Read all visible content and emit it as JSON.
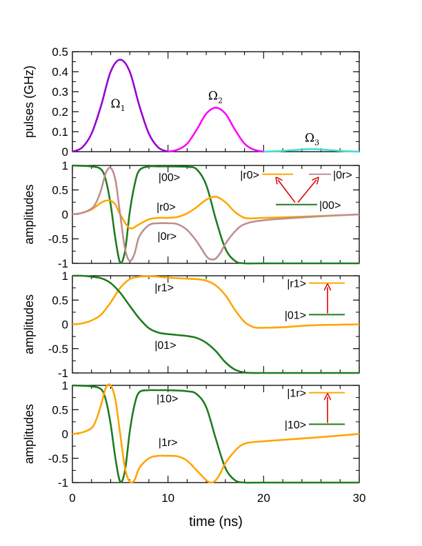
{
  "chart_data": {
    "type": "line",
    "xlabel": "time (ns)",
    "xlim": [
      0,
      30
    ],
    "xticks": [
      "0",
      "10",
      "20",
      "30"
    ],
    "panels": [
      {
        "ylabel": "pulses (GHz)",
        "ylim": [
          0,
          0.5
        ],
        "yticks": [
          "0",
          "0.1",
          "0.2",
          "0.3",
          "0.4",
          "0.5"
        ],
        "series": [
          {
            "name": "Ω",
            "sub": "1",
            "color": "#9400D3",
            "x": [
              0,
              1,
              2,
              3,
              4,
              5,
              6,
              7,
              8,
              9,
              10
            ],
            "y": [
              0,
              0.02,
              0.09,
              0.23,
              0.4,
              0.46,
              0.4,
              0.23,
              0.09,
              0.02,
              0
            ]
          },
          {
            "name": "Ω",
            "sub": "2",
            "color": "#FF00FF",
            "x": [
              10,
              11,
              12,
              13,
              14,
              15,
              16,
              17,
              18,
              19,
              20
            ],
            "y": [
              0,
              0.01,
              0.04,
              0.11,
              0.19,
              0.22,
              0.19,
              0.11,
              0.04,
              0.01,
              0
            ]
          },
          {
            "name": "Ω",
            "sub": "3",
            "color": "#40E0D0",
            "x": [
              20,
              22,
              24,
              25,
              26,
              28,
              30
            ],
            "y": [
              0,
              0.004,
              0.011,
              0.013,
              0.011,
              0.004,
              0
            ]
          }
        ],
        "labels": [
          {
            "text": "Ω",
            "sub": "1",
            "x": 4.0,
            "y": 0.22
          },
          {
            "text": "Ω",
            "sub": "2",
            "x": 14.2,
            "y": 0.26
          },
          {
            "text": "Ω",
            "sub": "3",
            "x": 24.3,
            "y": 0.05
          }
        ]
      },
      {
        "ylabel": "amplitudes",
        "ylim": [
          -1,
          1
        ],
        "yticks": [
          "-1",
          "-0.5",
          "0",
          "0.5",
          "1"
        ],
        "series": [
          {
            "name": "|00>",
            "color": "#1E7B1E",
            "x": [
              0,
              2,
              3,
              3.5,
              4,
              4.5,
              5,
              5.5,
              6,
              6.5,
              7,
              8,
              9,
              10,
              12,
              13,
              14,
              15,
              16,
              17,
              18,
              20,
              30
            ],
            "y": [
              1,
              0.98,
              0.92,
              0.7,
              0.2,
              -0.5,
              -0.98,
              -0.75,
              0.05,
              0.6,
              0.9,
              0.98,
              0.98,
              0.98,
              0.97,
              0.92,
              0.6,
              -0.1,
              -0.7,
              -0.95,
              -1,
              -1,
              -1
            ]
          },
          {
            "name": "|r0>",
            "color": "#FFA500",
            "x": [
              0,
              1,
              2,
              3,
              3.5,
              4,
              4.5,
              5,
              6,
              7,
              8,
              9,
              10,
              11,
              12,
              13,
              14,
              15,
              16,
              17,
              18,
              19,
              20,
              25,
              30
            ],
            "y": [
              0,
              0.03,
              0.1,
              0.24,
              0.28,
              0.28,
              0.2,
              0,
              -0.28,
              -0.2,
              -0.1,
              -0.07,
              -0.07,
              -0.05,
              0.02,
              0.15,
              0.3,
              0.36,
              0.25,
              0.05,
              -0.07,
              -0.08,
              -0.07,
              -0.04,
              0
            ]
          },
          {
            "name": "|0r>",
            "color": "#BC8F8F",
            "x": [
              0,
              1,
              2,
              2.5,
              3,
              3.5,
              4,
              4.5,
              5,
              5.5,
              6,
              6.5,
              7,
              8,
              9,
              10,
              11,
              12,
              13,
              14,
              14.5,
              15,
              15.5,
              16,
              17,
              18,
              20,
              25,
              30
            ],
            "y": [
              0,
              0.03,
              0.12,
              0.25,
              0.5,
              0.85,
              0.95,
              0.7,
              0,
              -0.7,
              -0.95,
              -0.8,
              -0.45,
              -0.22,
              -0.18,
              -0.18,
              -0.2,
              -0.32,
              -0.55,
              -0.85,
              -0.92,
              -0.9,
              -0.78,
              -0.6,
              -0.35,
              -0.2,
              -0.12,
              -0.05,
              0
            ]
          }
        ],
        "labels": [
          {
            "text": "|00>",
            "x": 9.0,
            "y": 0.68
          },
          {
            "text": "|r0>",
            "x": 8.8,
            "y": 0.08
          },
          {
            "text": "|0r>",
            "x": 8.9,
            "y": -0.52
          }
        ],
        "inset": {
          "levels": [
            {
              "text": "|r0>",
              "color": "#FFA500"
            },
            {
              "text": "|0r>",
              "color": "#BC8F8F"
            },
            {
              "text": "|00>",
              "color": "#1E7B1E"
            }
          ],
          "arrow_color": "#DD0000"
        }
      },
      {
        "ylabel": "amplitudes",
        "ylim": [
          -1,
          1
        ],
        "yticks": [
          "-1",
          "-0.5",
          "0",
          "0.5",
          "1"
        ],
        "series": [
          {
            "name": "|r1>",
            "color": "#FFA500",
            "x": [
              0,
              1,
              2,
              3,
              4,
              5,
              6,
              7,
              8,
              9,
              10,
              11,
              12,
              13,
              14,
              15,
              16,
              17,
              18,
              19,
              20,
              22,
              25,
              30
            ],
            "y": [
              0,
              0.02,
              0.08,
              0.2,
              0.45,
              0.75,
              0.93,
              0.98,
              0.99,
              0.98,
              0.96,
              0.95,
              0.94,
              0.93,
              0.9,
              0.8,
              0.6,
              0.3,
              0.05,
              -0.06,
              -0.07,
              -0.06,
              -0.02,
              0
            ]
          },
          {
            "name": "|01>",
            "color": "#1E7B1E",
            "x": [
              0,
              1,
              2,
              3,
              4,
              5,
              6,
              7,
              8,
              9,
              10,
              11,
              12,
              13,
              14,
              15,
              16,
              17,
              18,
              19,
              20,
              30
            ],
            "y": [
              1,
              1,
              0.98,
              0.95,
              0.85,
              0.65,
              0.38,
              0.12,
              -0.08,
              -0.17,
              -0.2,
              -0.22,
              -0.24,
              -0.28,
              -0.38,
              -0.55,
              -0.78,
              -0.93,
              -0.99,
              -1,
              -1,
              -1
            ]
          }
        ],
        "labels": [
          {
            "text": "|r1>",
            "x": 8.6,
            "y": 0.68
          },
          {
            "text": "|01>",
            "x": 8.6,
            "y": -0.5
          }
        ],
        "inset": {
          "levels": [
            {
              "text": "|r1>",
              "color": "#FFA500"
            },
            {
              "text": "|01>",
              "color": "#1E7B1E"
            }
          ],
          "arrow_color": "#DD0000"
        }
      },
      {
        "ylabel": "amplitudes",
        "ylim": [
          -1,
          1
        ],
        "yticks": [
          "-1",
          "-0.5",
          "0",
          "0.5",
          "1"
        ],
        "series": [
          {
            "name": "|10>",
            "color": "#1E7B1E",
            "x": [
              0,
              2,
              3,
              3.5,
              4,
              4.5,
              5,
              5.5,
              6,
              6.5,
              7,
              8,
              9,
              10,
              12,
              13,
              14,
              15,
              16,
              17,
              18,
              20,
              30
            ],
            "y": [
              1,
              0.98,
              0.92,
              0.7,
              0.2,
              -0.5,
              -0.98,
              -0.75,
              0.05,
              0.6,
              0.86,
              0.9,
              0.9,
              0.9,
              0.88,
              0.82,
              0.55,
              -0.1,
              -0.7,
              -0.95,
              -1,
              -1,
              -1
            ]
          },
          {
            "name": "|1r>",
            "color": "#FFA500",
            "x": [
              0,
              1,
              2,
              2.5,
              3,
              3.5,
              4,
              4.5,
              5,
              5.5,
              6,
              6.5,
              7,
              8,
              9,
              10,
              11,
              12,
              13,
              14,
              14.5,
              15,
              15.5,
              16,
              17,
              18,
              20,
              25,
              30
            ],
            "y": [
              0,
              0.03,
              0.12,
              0.3,
              0.6,
              0.95,
              1.0,
              0.7,
              0.0,
              -0.7,
              -0.98,
              -0.95,
              -0.7,
              -0.5,
              -0.45,
              -0.45,
              -0.46,
              -0.55,
              -0.75,
              -0.95,
              -1.0,
              -0.95,
              -0.8,
              -0.6,
              -0.35,
              -0.2,
              -0.15,
              -0.08,
              0
            ]
          }
        ],
        "labels": [
          {
            "text": "|10>",
            "x": 8.8,
            "y": 0.65
          },
          {
            "text": "|1r>",
            "x": 9.0,
            "y": -0.25
          }
        ],
        "inset": {
          "levels": [
            {
              "text": "|1r>",
              "color": "#FFA500"
            },
            {
              "text": "|10>",
              "color": "#1E7B1E"
            }
          ],
          "arrow_color": "#DD0000"
        }
      }
    ]
  }
}
